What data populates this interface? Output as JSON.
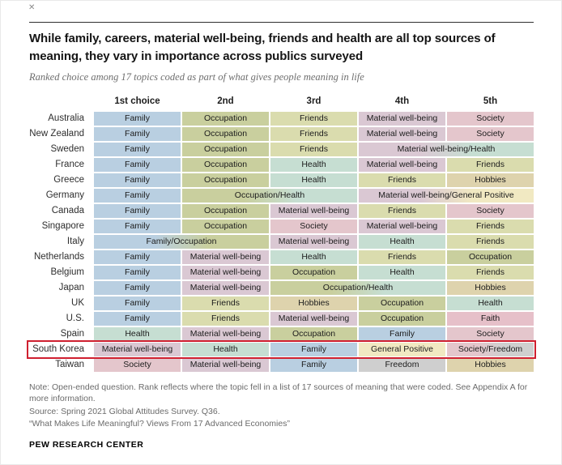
{
  "page": {
    "close_glyph": "✕"
  },
  "chart_data": {
    "type": "table",
    "title": "While family, careers, material well-being, friends and health are all top sources of meaning, they vary in importance across publics surveyed",
    "subtitle": "Ranked choice among 17 topics coded as part of what gives people meaning in life",
    "columns": [
      "1st choice",
      "2nd",
      "3rd",
      "4th",
      "5th"
    ],
    "highlight_country": "South Korea",
    "rows": [
      {
        "country": "Australia",
        "cells": [
          {
            "label": "Family",
            "span": 1,
            "topics": [
              "Family"
            ]
          },
          {
            "label": "Occupation",
            "span": 1,
            "topics": [
              "Occupation"
            ]
          },
          {
            "label": "Friends",
            "span": 1,
            "topics": [
              "Friends"
            ]
          },
          {
            "label": "Material well-being",
            "span": 1,
            "topics": [
              "Material well-being"
            ]
          },
          {
            "label": "Society",
            "span": 1,
            "topics": [
              "Society"
            ]
          }
        ]
      },
      {
        "country": "New Zealand",
        "cells": [
          {
            "label": "Family",
            "span": 1,
            "topics": [
              "Family"
            ]
          },
          {
            "label": "Occupation",
            "span": 1,
            "topics": [
              "Occupation"
            ]
          },
          {
            "label": "Friends",
            "span": 1,
            "topics": [
              "Friends"
            ]
          },
          {
            "label": "Material well-being",
            "span": 1,
            "topics": [
              "Material well-being"
            ]
          },
          {
            "label": "Society",
            "span": 1,
            "topics": [
              "Society"
            ]
          }
        ]
      },
      {
        "country": "Sweden",
        "cells": [
          {
            "label": "Family",
            "span": 1,
            "topics": [
              "Family"
            ]
          },
          {
            "label": "Occupation",
            "span": 1,
            "topics": [
              "Occupation"
            ]
          },
          {
            "label": "Friends",
            "span": 1,
            "topics": [
              "Friends"
            ]
          },
          {
            "label": "Material well-being/Health",
            "span": 2,
            "topics": [
              "Material well-being",
              "Health"
            ]
          }
        ]
      },
      {
        "country": "France",
        "cells": [
          {
            "label": "Family",
            "span": 1,
            "topics": [
              "Family"
            ]
          },
          {
            "label": "Occupation",
            "span": 1,
            "topics": [
              "Occupation"
            ]
          },
          {
            "label": "Health",
            "span": 1,
            "topics": [
              "Health"
            ]
          },
          {
            "label": "Material well-being",
            "span": 1,
            "topics": [
              "Material well-being"
            ]
          },
          {
            "label": "Friends",
            "span": 1,
            "topics": [
              "Friends"
            ]
          }
        ]
      },
      {
        "country": "Greece",
        "cells": [
          {
            "label": "Family",
            "span": 1,
            "topics": [
              "Family"
            ]
          },
          {
            "label": "Occupation",
            "span": 1,
            "topics": [
              "Occupation"
            ]
          },
          {
            "label": "Health",
            "span": 1,
            "topics": [
              "Health"
            ]
          },
          {
            "label": "Friends",
            "span": 1,
            "topics": [
              "Friends"
            ]
          },
          {
            "label": "Hobbies",
            "span": 1,
            "topics": [
              "Hobbies"
            ]
          }
        ]
      },
      {
        "country": "Germany",
        "cells": [
          {
            "label": "Family",
            "span": 1,
            "topics": [
              "Family"
            ]
          },
          {
            "label": "Occupation/Health",
            "span": 2,
            "topics": [
              "Occupation",
              "Health"
            ]
          },
          {
            "label": "Material well-being/General Positive",
            "span": 2,
            "topics": [
              "Material well-being",
              "General Positive"
            ]
          }
        ]
      },
      {
        "country": "Canada",
        "cells": [
          {
            "label": "Family",
            "span": 1,
            "topics": [
              "Family"
            ]
          },
          {
            "label": "Occupation",
            "span": 1,
            "topics": [
              "Occupation"
            ]
          },
          {
            "label": "Material well-being",
            "span": 1,
            "topics": [
              "Material well-being"
            ]
          },
          {
            "label": "Friends",
            "span": 1,
            "topics": [
              "Friends"
            ]
          },
          {
            "label": "Society",
            "span": 1,
            "topics": [
              "Society"
            ]
          }
        ]
      },
      {
        "country": "Singapore",
        "cells": [
          {
            "label": "Family",
            "span": 1,
            "topics": [
              "Family"
            ]
          },
          {
            "label": "Occupation",
            "span": 1,
            "topics": [
              "Occupation"
            ]
          },
          {
            "label": "Society",
            "span": 1,
            "topics": [
              "Society"
            ]
          },
          {
            "label": "Material well-being",
            "span": 1,
            "topics": [
              "Material well-being"
            ]
          },
          {
            "label": "Friends",
            "span": 1,
            "topics": [
              "Friends"
            ]
          }
        ]
      },
      {
        "country": "Italy",
        "cells": [
          {
            "label": "Family/Occupation",
            "span": 2,
            "topics": [
              "Family",
              "Occupation"
            ]
          },
          {
            "label": "Material well-being",
            "span": 1,
            "topics": [
              "Material well-being"
            ]
          },
          {
            "label": "Health",
            "span": 1,
            "topics": [
              "Health"
            ]
          },
          {
            "label": "Friends",
            "span": 1,
            "topics": [
              "Friends"
            ]
          }
        ]
      },
      {
        "country": "Netherlands",
        "cells": [
          {
            "label": "Family",
            "span": 1,
            "topics": [
              "Family"
            ]
          },
          {
            "label": "Material well-being",
            "span": 1,
            "topics": [
              "Material well-being"
            ]
          },
          {
            "label": "Health",
            "span": 1,
            "topics": [
              "Health"
            ]
          },
          {
            "label": "Friends",
            "span": 1,
            "topics": [
              "Friends"
            ]
          },
          {
            "label": "Occupation",
            "span": 1,
            "topics": [
              "Occupation"
            ]
          }
        ]
      },
      {
        "country": "Belgium",
        "cells": [
          {
            "label": "Family",
            "span": 1,
            "topics": [
              "Family"
            ]
          },
          {
            "label": "Material well-being",
            "span": 1,
            "topics": [
              "Material well-being"
            ]
          },
          {
            "label": "Occupation",
            "span": 1,
            "topics": [
              "Occupation"
            ]
          },
          {
            "label": "Health",
            "span": 1,
            "topics": [
              "Health"
            ]
          },
          {
            "label": "Friends",
            "span": 1,
            "topics": [
              "Friends"
            ]
          }
        ]
      },
      {
        "country": "Japan",
        "cells": [
          {
            "label": "Family",
            "span": 1,
            "topics": [
              "Family"
            ]
          },
          {
            "label": "Material well-being",
            "span": 1,
            "topics": [
              "Material well-being"
            ]
          },
          {
            "label": "Occupation/Health",
            "span": 2,
            "topics": [
              "Occupation",
              "Health"
            ]
          },
          {
            "label": "Hobbies",
            "span": 1,
            "topics": [
              "Hobbies"
            ]
          }
        ]
      },
      {
        "country": "UK",
        "cells": [
          {
            "label": "Family",
            "span": 1,
            "topics": [
              "Family"
            ]
          },
          {
            "label": "Friends",
            "span": 1,
            "topics": [
              "Friends"
            ]
          },
          {
            "label": "Hobbies",
            "span": 1,
            "topics": [
              "Hobbies"
            ]
          },
          {
            "label": "Occupation",
            "span": 1,
            "topics": [
              "Occupation"
            ]
          },
          {
            "label": "Health",
            "span": 1,
            "topics": [
              "Health"
            ]
          }
        ]
      },
      {
        "country": "U.S.",
        "cells": [
          {
            "label": "Family",
            "span": 1,
            "topics": [
              "Family"
            ]
          },
          {
            "label": "Friends",
            "span": 1,
            "topics": [
              "Friends"
            ]
          },
          {
            "label": "Material well-being",
            "span": 1,
            "topics": [
              "Material well-being"
            ]
          },
          {
            "label": "Occupation",
            "span": 1,
            "topics": [
              "Occupation"
            ]
          },
          {
            "label": "Faith",
            "span": 1,
            "topics": [
              "Faith"
            ]
          }
        ]
      },
      {
        "country": "Spain",
        "cells": [
          {
            "label": "Health",
            "span": 1,
            "topics": [
              "Health"
            ]
          },
          {
            "label": "Material well-being",
            "span": 1,
            "topics": [
              "Material well-being"
            ]
          },
          {
            "label": "Occupation",
            "span": 1,
            "topics": [
              "Occupation"
            ]
          },
          {
            "label": "Family",
            "span": 1,
            "topics": [
              "Family"
            ]
          },
          {
            "label": "Society",
            "span": 1,
            "topics": [
              "Society"
            ]
          }
        ]
      },
      {
        "country": "South Korea",
        "cells": [
          {
            "label": "Material well-being",
            "span": 1,
            "topics": [
              "Material well-being"
            ]
          },
          {
            "label": "Health",
            "span": 1,
            "topics": [
              "Health"
            ]
          },
          {
            "label": "Family",
            "span": 1,
            "topics": [
              "Family"
            ]
          },
          {
            "label": "General Positive",
            "span": 1,
            "topics": [
              "General Positive"
            ]
          },
          {
            "label": "Society/Freedom",
            "span": 1,
            "topics": [
              "Society",
              "Freedom"
            ]
          }
        ]
      },
      {
        "country": "Taiwan",
        "cells": [
          {
            "label": "Society",
            "span": 1,
            "topics": [
              "Society"
            ]
          },
          {
            "label": "Material well-being",
            "span": 1,
            "topics": [
              "Material well-being"
            ]
          },
          {
            "label": "Family",
            "span": 1,
            "topics": [
              "Family"
            ]
          },
          {
            "label": "Freedom",
            "span": 1,
            "topics": [
              "Freedom"
            ]
          },
          {
            "label": "Hobbies",
            "span": 1,
            "topics": [
              "Hobbies"
            ]
          }
        ]
      }
    ]
  },
  "topic_colors": {
    "Family": "#b9cfe1",
    "Occupation": "#c9cf9e",
    "Friends": "#dadcae",
    "Material well-being": "#dac8d3",
    "Society": "#e4c6cc",
    "Health": "#c6ded2",
    "Hobbies": "#ded3ad",
    "General Positive": "#f1e9c2",
    "Faith": "#e6c0c9",
    "Freedom": "#cfcfcf"
  },
  "highlight_color": "#cf2030",
  "footer": {
    "note": "Note: Open-ended question. Rank reflects where the topic fell in a list of 17 sources of meaning that were coded. See Appendix A for more information.",
    "source": "Source: Spring 2021 Global Attitudes Survey. Q36.",
    "report": "“What Makes Life Meaningful? Views From 17 Advanced Economies”",
    "brand": "PEW RESEARCH CENTER"
  }
}
